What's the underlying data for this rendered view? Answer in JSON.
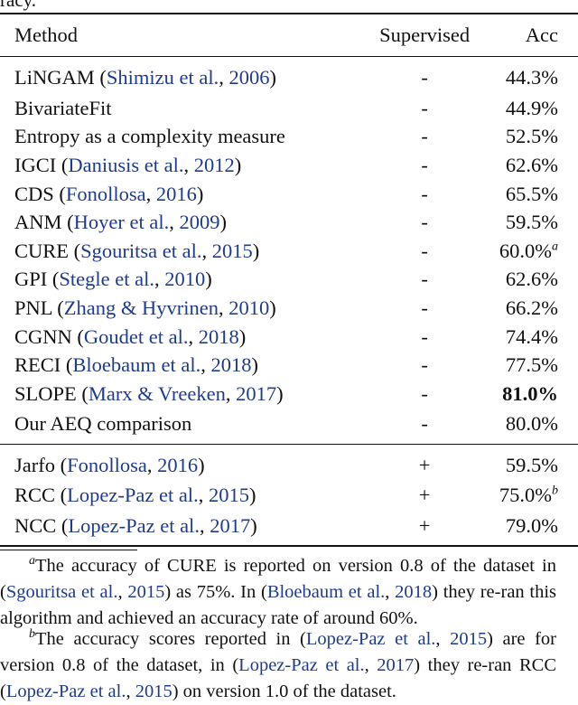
{
  "caption_tail": "racy.",
  "table": {
    "headers": {
      "method": "Method",
      "supervised": "Supervised",
      "acc": "Acc"
    },
    "rows": [
      {
        "pre": "LiNGAM (",
        "cite": "Shimizu et al.",
        "mid": ", ",
        "year": "2006",
        "post": ")",
        "supervised": "-",
        "acc": "44.3%",
        "note": ""
      },
      {
        "pre": "BivariateFit",
        "cite": "",
        "mid": "",
        "year": "",
        "post": "",
        "supervised": "-",
        "acc": "44.9%",
        "note": ""
      },
      {
        "pre": "Entropy as a complexity measure",
        "cite": "",
        "mid": "",
        "year": "",
        "post": "",
        "supervised": "-",
        "acc": "52.5%",
        "note": ""
      },
      {
        "pre": "IGCI (",
        "cite": "Daniusis et al.",
        "mid": ", ",
        "year": "2012",
        "post": ")",
        "supervised": "-",
        "acc": "62.6%",
        "note": ""
      },
      {
        "pre": "CDS (",
        "cite": "Fonollosa",
        "mid": ", ",
        "year": "2016",
        "post": ")",
        "supervised": "-",
        "acc": "65.5%",
        "note": ""
      },
      {
        "pre": "ANM (",
        "cite": "Hoyer et al.",
        "mid": ", ",
        "year": "2009",
        "post": ")",
        "supervised": "-",
        "acc": "59.5%",
        "note": ""
      },
      {
        "pre": "CURE (",
        "cite": "Sgouritsa et al.",
        "mid": ", ",
        "year": "2015",
        "post": ")",
        "supervised": "-",
        "acc": "60.0%",
        "note": "a"
      },
      {
        "pre": "GPI (",
        "cite": "Stegle et al.",
        "mid": ", ",
        "year": "2010",
        "post": ")",
        "supervised": "-",
        "acc": "62.6%",
        "note": ""
      },
      {
        "pre": "PNL (",
        "cite": "Zhang & Hyvrinen",
        "mid": ", ",
        "year": "2010",
        "post": ")",
        "supervised": "-",
        "acc": "66.2%",
        "note": ""
      },
      {
        "pre": "CGNN (",
        "cite": "Goudet et al.",
        "mid": ", ",
        "year": "2018",
        "post": ")",
        "supervised": "-",
        "acc": "74.4%",
        "note": ""
      },
      {
        "pre": "RECI (",
        "cite": "Bloebaum et al.",
        "mid": ", ",
        "year": "2018",
        "post": ")",
        "supervised": "-",
        "acc": "77.5%",
        "note": ""
      },
      {
        "pre": "SLOPE (",
        "cite": "Marx & Vreeken",
        "mid": ", ",
        "year": "2017",
        "post": ")",
        "supervised": "-",
        "acc": "81.0%",
        "note": "",
        "bold": true
      },
      {
        "pre": "Our AEQ comparison",
        "cite": "",
        "mid": "",
        "year": "",
        "post": "",
        "supervised": "-",
        "acc": "80.0%",
        "note": ""
      },
      {
        "pre": "Jarfo (",
        "cite": "Fonollosa",
        "mid": ", ",
        "year": "2016",
        "post": ")",
        "supervised": "+",
        "acc": "59.5%",
        "note": ""
      },
      {
        "pre": "RCC (",
        "cite": "Lopez-Paz et al.",
        "mid": ", ",
        "year": "2015",
        "post": ")",
        "supervised": "+",
        "acc": "75.0%",
        "note": "b"
      },
      {
        "pre": "NCC (",
        "cite": "Lopez-Paz et al.",
        "mid": ", ",
        "year": "2017",
        "post": ")",
        "supervised": "+",
        "acc": "79.0%",
        "note": ""
      }
    ]
  },
  "footnotes": {
    "a": {
      "mark": "a",
      "t1": "The accuracy of CURE is reported on version 0.8 of the dataset in (",
      "c1": "Sgouritsa et al.",
      "s1": ", ",
      "y1": "2015",
      "t2": ") as 75%. In (",
      "c2": "Bloebaum et al.",
      "s2": ", ",
      "y2": "2018",
      "t3": ") they re-ran this algorithm and achieved an accuracy rate of around 60%."
    },
    "b": {
      "mark": "b",
      "t1": "The accuracy scores reported in (",
      "c1": "Lopez-Paz et al.",
      "s1": ", ",
      "y1": "2015",
      "t2": ") are for version 0.8 of the dataset, in (",
      "c2": "Lopez-Paz et al.",
      "s2": ", ",
      "y2": "2017",
      "t3": ") they re-ran RCC (",
      "c3": "Lopez-Paz et al.",
      "s3": ", ",
      "y3": "2015",
      "t4": ") on version 1.0 of the dataset."
    }
  }
}
